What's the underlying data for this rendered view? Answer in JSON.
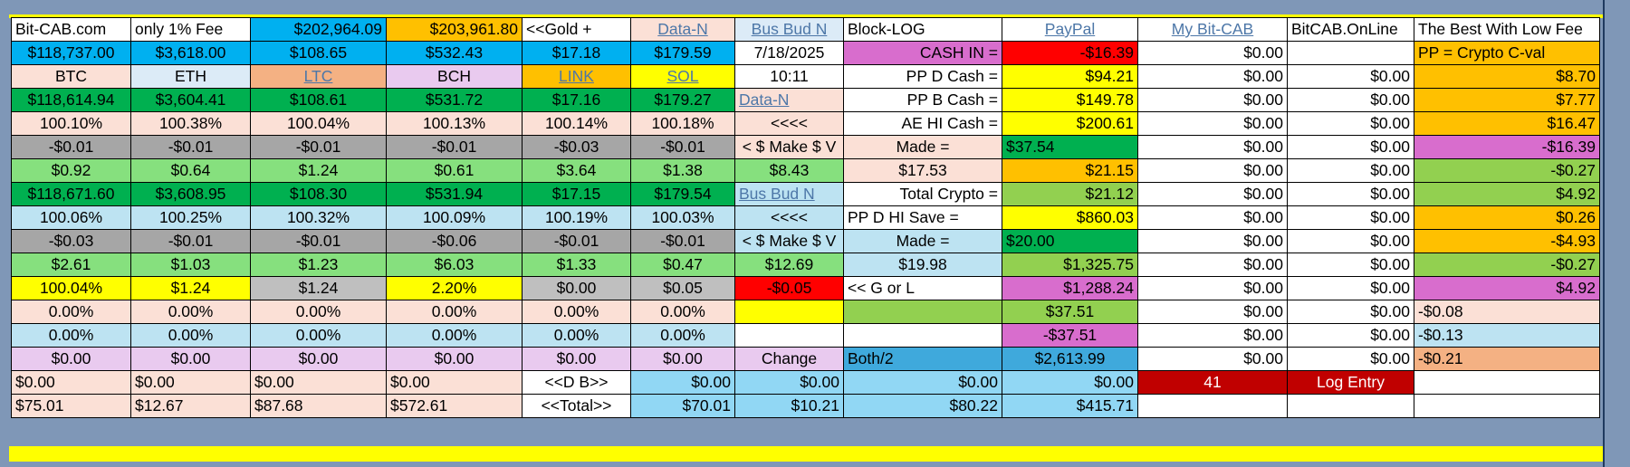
{
  "palette": {
    "W": "#ffffff",
    "B": "#00b0f0",
    "O": "#ffc000",
    "P": "#fbe0d6",
    "Q": "#dcebf7",
    "Y": "#ffff00",
    "M": "#d86dcd",
    "R": "#ff0000",
    "G": "#00b050",
    "LG": "#92d050",
    "MG": "#86e07e",
    "GR": "#a6a6a6",
    "LB": "#bde3f2",
    "LV": "#e9caef",
    "SA": "#f4b183",
    "SK": "#91d7f4",
    "DR": "#c00000",
    "DB": "#3fa9dc",
    "LGR": "#bfbfbf"
  },
  "link_color": "#4d77a8",
  "rows": [
    [
      {
        "t": "Bit-CAB.com",
        "a": "l"
      },
      {
        "t": "only 1% Fee",
        "a": "l"
      },
      {
        "t": "$202,964.09",
        "a": "r",
        "bg": "B"
      },
      {
        "t": "$203,961.80",
        "a": "r",
        "bg": "O"
      },
      {
        "t": "<<Gold +",
        "a": "l"
      },
      {
        "t": "Data-N",
        "a": "c",
        "bg": "P",
        "link": true
      },
      {
        "t": "Bus Bud N",
        "a": "c",
        "bg": "Q",
        "link": true
      },
      {
        "t": "Block-LOG",
        "a": "l"
      },
      {
        "t": "PayPal",
        "a": "c",
        "link": true
      },
      {
        "t": "My Bit-CAB",
        "a": "c",
        "link": true
      },
      {
        "t": "BitCAB.OnLine",
        "a": "l"
      },
      {
        "t": "The Best With Low Fee",
        "a": "l"
      }
    ],
    [
      {
        "t": "$118,737.00",
        "a": "c",
        "bg": "B"
      },
      {
        "t": "$3,618.00",
        "a": "c",
        "bg": "B"
      },
      {
        "t": "$108.65",
        "a": "c",
        "bg": "B"
      },
      {
        "t": "$532.43",
        "a": "c",
        "bg": "B"
      },
      {
        "t": "$17.18",
        "a": "c",
        "bg": "B"
      },
      {
        "t": "$179.59",
        "a": "c",
        "bg": "B"
      },
      {
        "t": "7/18/2025",
        "a": "c"
      },
      {
        "t": "CASH IN =",
        "a": "r",
        "bg": "M"
      },
      {
        "t": "-$16.39",
        "a": "r",
        "bg": "R"
      },
      {
        "t": "$0.00",
        "a": "r"
      },
      {
        "t": "",
        "a": "r"
      },
      {
        "t": "PP = Crypto C-val",
        "a": "l",
        "bg": "O"
      }
    ],
    [
      {
        "t": "BTC",
        "a": "c",
        "bg": "P"
      },
      {
        "t": "ETH",
        "a": "c",
        "bg": "Q"
      },
      {
        "t": "LTC",
        "a": "c",
        "bg": "SA",
        "link": true
      },
      {
        "t": "BCH",
        "a": "c",
        "bg": "LV"
      },
      {
        "t": "LINK",
        "a": "c",
        "bg": "O",
        "link": true
      },
      {
        "t": "SOL",
        "a": "c",
        "bg": "Y",
        "link": true
      },
      {
        "t": "10:11",
        "a": "c"
      },
      {
        "t": "PP  D  Cash =",
        "a": "r"
      },
      {
        "t": "$94.21",
        "a": "r",
        "bg": "Y"
      },
      {
        "t": "$0.00",
        "a": "r"
      },
      {
        "t": "$0.00",
        "a": "r"
      },
      {
        "t": "$8.70",
        "a": "r",
        "bg": "O"
      }
    ],
    [
      {
        "t": "$118,614.94",
        "a": "c",
        "bg": "G"
      },
      {
        "t": "$3,604.41",
        "a": "c",
        "bg": "G"
      },
      {
        "t": "$108.61",
        "a": "c",
        "bg": "G"
      },
      {
        "t": "$531.72",
        "a": "c",
        "bg": "G"
      },
      {
        "t": "$17.16",
        "a": "c",
        "bg": "G"
      },
      {
        "t": "$179.27",
        "a": "c",
        "bg": "G"
      },
      {
        "t": "Data-N",
        "a": "l",
        "bg": "P",
        "link": true
      },
      {
        "t": "PP  B  Cash =",
        "a": "r"
      },
      {
        "t": "$149.78",
        "a": "r",
        "bg": "Y"
      },
      {
        "t": "$0.00",
        "a": "r"
      },
      {
        "t": "$0.00",
        "a": "r"
      },
      {
        "t": "$7.77",
        "a": "r",
        "bg": "O"
      }
    ],
    [
      {
        "t": "100.10%",
        "a": "c",
        "bg": "P"
      },
      {
        "t": "100.38%",
        "a": "c",
        "bg": "P"
      },
      {
        "t": "100.04%",
        "a": "c",
        "bg": "P"
      },
      {
        "t": "100.13%",
        "a": "c",
        "bg": "P"
      },
      {
        "t": "100.14%",
        "a": "c",
        "bg": "P"
      },
      {
        "t": "100.18%",
        "a": "c",
        "bg": "P"
      },
      {
        "t": "<<<<",
        "a": "c",
        "bg": "P"
      },
      {
        "t": "AE HI Cash =",
        "a": "r"
      },
      {
        "t": "$200.61",
        "a": "r",
        "bg": "Y"
      },
      {
        "t": "$0.00",
        "a": "r"
      },
      {
        "t": "$0.00",
        "a": "r"
      },
      {
        "t": "$16.47",
        "a": "r",
        "bg": "O"
      }
    ],
    [
      {
        "t": "-$0.01",
        "a": "c",
        "bg": "GR"
      },
      {
        "t": "-$0.01",
        "a": "c",
        "bg": "GR"
      },
      {
        "t": "-$0.01",
        "a": "c",
        "bg": "GR"
      },
      {
        "t": "-$0.01",
        "a": "c",
        "bg": "GR"
      },
      {
        "t": "-$0.03",
        "a": "c",
        "bg": "GR"
      },
      {
        "t": "-$0.01",
        "a": "c",
        "bg": "GR"
      },
      {
        "t": "< $ Make $ V",
        "a": "c",
        "bg": "P"
      },
      {
        "t": "Made =",
        "a": "c",
        "bg": "P"
      },
      {
        "t": "$37.54",
        "a": "l",
        "bg": "G"
      },
      {
        "t": "$0.00",
        "a": "r"
      },
      {
        "t": "$0.00",
        "a": "r"
      },
      {
        "t": "-$16.39",
        "a": "r",
        "bg": "M"
      }
    ],
    [
      {
        "t": "$0.92",
        "a": "c",
        "bg": "MG"
      },
      {
        "t": "$0.64",
        "a": "c",
        "bg": "MG"
      },
      {
        "t": "$1.24",
        "a": "c",
        "bg": "MG"
      },
      {
        "t": "$0.61",
        "a": "c",
        "bg": "MG"
      },
      {
        "t": "$3.64",
        "a": "c",
        "bg": "MG"
      },
      {
        "t": "$1.38",
        "a": "c",
        "bg": "MG"
      },
      {
        "t": "$8.43",
        "a": "c",
        "bg": "MG"
      },
      {
        "t": "$17.53",
        "a": "c",
        "bg": "P"
      },
      {
        "t": "$21.15",
        "a": "r",
        "bg": "O"
      },
      {
        "t": "$0.00",
        "a": "r"
      },
      {
        "t": "$0.00",
        "a": "r"
      },
      {
        "t": "-$0.27",
        "a": "r",
        "bg": "LG"
      }
    ],
    [
      {
        "t": "$118,671.60",
        "a": "c",
        "bg": "G"
      },
      {
        "t": "$3,608.95",
        "a": "c",
        "bg": "G"
      },
      {
        "t": "$108.30",
        "a": "c",
        "bg": "G"
      },
      {
        "t": "$531.94",
        "a": "c",
        "bg": "G"
      },
      {
        "t": "$17.15",
        "a": "c",
        "bg": "G"
      },
      {
        "t": "$179.54",
        "a": "c",
        "bg": "G"
      },
      {
        "t": "Bus Bud N",
        "a": "l",
        "bg": "LB",
        "link": true
      },
      {
        "t": "Total Crypto =",
        "a": "r"
      },
      {
        "t": "$21.12",
        "a": "r",
        "bg": "LG"
      },
      {
        "t": "$0.00",
        "a": "r"
      },
      {
        "t": "$0.00",
        "a": "r"
      },
      {
        "t": "$4.92",
        "a": "r",
        "bg": "LG"
      }
    ],
    [
      {
        "t": "100.06%",
        "a": "c",
        "bg": "LB"
      },
      {
        "t": "100.25%",
        "a": "c",
        "bg": "LB"
      },
      {
        "t": "100.32%",
        "a": "c",
        "bg": "LB"
      },
      {
        "t": "100.09%",
        "a": "c",
        "bg": "LB"
      },
      {
        "t": "100.19%",
        "a": "c",
        "bg": "LB"
      },
      {
        "t": "100.03%",
        "a": "c",
        "bg": "LB"
      },
      {
        "t": "<<<<",
        "a": "c",
        "bg": "LB"
      },
      {
        "t": "PP D HI Save =",
        "a": "l"
      },
      {
        "t": "$860.03",
        "a": "r",
        "bg": "Y"
      },
      {
        "t": "$0.00",
        "a": "r"
      },
      {
        "t": "$0.00",
        "a": "r"
      },
      {
        "t": "$0.26",
        "a": "r",
        "bg": "O"
      }
    ],
    [
      {
        "t": "-$0.03",
        "a": "c",
        "bg": "GR"
      },
      {
        "t": "-$0.01",
        "a": "c",
        "bg": "GR"
      },
      {
        "t": "-$0.01",
        "a": "c",
        "bg": "GR"
      },
      {
        "t": "-$0.06",
        "a": "c",
        "bg": "GR"
      },
      {
        "t": "-$0.01",
        "a": "c",
        "bg": "GR"
      },
      {
        "t": "-$0.01",
        "a": "c",
        "bg": "GR"
      },
      {
        "t": "< $ Make $ V",
        "a": "c",
        "bg": "LB"
      },
      {
        "t": "Made =",
        "a": "c",
        "bg": "LB"
      },
      {
        "t": "$20.00",
        "a": "l",
        "bg": "G"
      },
      {
        "t": "$0.00",
        "a": "r"
      },
      {
        "t": "$0.00",
        "a": "r"
      },
      {
        "t": "-$4.93",
        "a": "r",
        "bg": "O"
      }
    ],
    [
      {
        "t": "$2.61",
        "a": "c",
        "bg": "MG"
      },
      {
        "t": "$1.03",
        "a": "c",
        "bg": "MG"
      },
      {
        "t": "$1.23",
        "a": "c",
        "bg": "MG"
      },
      {
        "t": "$6.03",
        "a": "c",
        "bg": "MG"
      },
      {
        "t": "$1.33",
        "a": "c",
        "bg": "MG"
      },
      {
        "t": "$0.47",
        "a": "c",
        "bg": "MG"
      },
      {
        "t": "$12.69",
        "a": "c",
        "bg": "MG"
      },
      {
        "t": "$19.98",
        "a": "c",
        "bg": "LB"
      },
      {
        "t": "$1,325.75",
        "a": "r",
        "bg": "LG"
      },
      {
        "t": "$0.00",
        "a": "r"
      },
      {
        "t": "$0.00",
        "a": "r"
      },
      {
        "t": "-$0.27",
        "a": "r",
        "bg": "LG"
      }
    ],
    [
      {
        "t": "100.04%",
        "a": "c",
        "bg": "Y"
      },
      {
        "t": "$1.24",
        "a": "c",
        "bg": "Y"
      },
      {
        "t": "$1.24",
        "a": "c",
        "bg": "LGR"
      },
      {
        "t": "2.20%",
        "a": "c",
        "bg": "Y"
      },
      {
        "t": "$0.00",
        "a": "c",
        "bg": "LGR"
      },
      {
        "t": "$0.05",
        "a": "c",
        "bg": "LGR"
      },
      {
        "t": "-$0.05",
        "a": "c",
        "bg": "R"
      },
      {
        "t": "<< G or L",
        "a": "l"
      },
      {
        "t": "$1,288.24",
        "a": "r",
        "bg": "M"
      },
      {
        "t": "$0.00",
        "a": "r"
      },
      {
        "t": "$0.00",
        "a": "r"
      },
      {
        "t": "$4.92",
        "a": "r",
        "bg": "M"
      }
    ],
    [
      {
        "t": "0.00%",
        "a": "c",
        "bg": "P"
      },
      {
        "t": "0.00%",
        "a": "c",
        "bg": "P"
      },
      {
        "t": "0.00%",
        "a": "c",
        "bg": "P"
      },
      {
        "t": "0.00%",
        "a": "c",
        "bg": "P"
      },
      {
        "t": "0.00%",
        "a": "c",
        "bg": "P"
      },
      {
        "t": "0.00%",
        "a": "c",
        "bg": "P"
      },
      {
        "t": "",
        "a": "c",
        "bg": "Y"
      },
      {
        "t": "",
        "a": "c",
        "bg": "LG"
      },
      {
        "t": "$37.51",
        "a": "c",
        "bg": "LG"
      },
      {
        "t": "$0.00",
        "a": "r"
      },
      {
        "t": "$0.00",
        "a": "r"
      },
      {
        "t": "-$0.08",
        "a": "l",
        "bg": "P"
      }
    ],
    [
      {
        "t": "0.00%",
        "a": "c",
        "bg": "LB"
      },
      {
        "t": "0.00%",
        "a": "c",
        "bg": "LB"
      },
      {
        "t": "0.00%",
        "a": "c",
        "bg": "LB"
      },
      {
        "t": "0.00%",
        "a": "c",
        "bg": "LB"
      },
      {
        "t": "0.00%",
        "a": "c",
        "bg": "LB"
      },
      {
        "t": "0.00%",
        "a": "c",
        "bg": "LB"
      },
      {
        "t": "",
        "a": "c"
      },
      {
        "t": "",
        "a": "c"
      },
      {
        "t": "-$37.51",
        "a": "c",
        "bg": "M"
      },
      {
        "t": "$0.00",
        "a": "r"
      },
      {
        "t": "$0.00",
        "a": "r"
      },
      {
        "t": "-$0.13",
        "a": "l",
        "bg": "LB"
      }
    ],
    [
      {
        "t": "$0.00",
        "a": "c",
        "bg": "LV"
      },
      {
        "t": "$0.00",
        "a": "c",
        "bg": "LV"
      },
      {
        "t": "$0.00",
        "a": "c",
        "bg": "LV"
      },
      {
        "t": "$0.00",
        "a": "c",
        "bg": "LV"
      },
      {
        "t": "$0.00",
        "a": "c",
        "bg": "LV"
      },
      {
        "t": "$0.00",
        "a": "c",
        "bg": "LV"
      },
      {
        "t": "Change",
        "a": "c",
        "bg": "LV"
      },
      {
        "t": "Both/2",
        "a": "l",
        "bg": "DB"
      },
      {
        "t": "$2,613.99",
        "a": "c",
        "bg": "DB"
      },
      {
        "t": "$0.00",
        "a": "r"
      },
      {
        "t": "$0.00",
        "a": "r"
      },
      {
        "t": "-$0.21",
        "a": "l",
        "bg": "SA"
      }
    ],
    [
      {
        "t": "$0.00",
        "a": "l",
        "bg": "P"
      },
      {
        "t": "$0.00",
        "a": "l",
        "bg": "P"
      },
      {
        "t": "$0.00",
        "a": "l",
        "bg": "P"
      },
      {
        "t": "$0.00",
        "a": "l",
        "bg": "P"
      },
      {
        "t": "<<D  B>>",
        "a": "c"
      },
      {
        "t": "$0.00",
        "a": "r",
        "bg": "SK"
      },
      {
        "t": "$0.00",
        "a": "r",
        "bg": "SK"
      },
      {
        "t": "$0.00",
        "a": "r",
        "bg": "SK"
      },
      {
        "t": "$0.00",
        "a": "r",
        "bg": "SK"
      },
      {
        "t": "41",
        "a": "c",
        "bg": "DR",
        "fg": "#ffffff"
      },
      {
        "t": "Log Entry",
        "a": "c",
        "bg": "DR",
        "fg": "#ffffff"
      },
      {
        "t": "",
        "a": "l"
      }
    ],
    [
      {
        "t": "$75.01",
        "a": "l",
        "bg": "P"
      },
      {
        "t": "$12.67",
        "a": "l",
        "bg": "P"
      },
      {
        "t": "$87.68",
        "a": "l",
        "bg": "P"
      },
      {
        "t": "$572.61",
        "a": "l",
        "bg": "P"
      },
      {
        "t": "<<Total>>",
        "a": "c"
      },
      {
        "t": "$70.01",
        "a": "r",
        "bg": "SK"
      },
      {
        "t": "$10.21",
        "a": "r",
        "bg": "SK"
      },
      {
        "t": "$80.22",
        "a": "r",
        "bg": "SK"
      },
      {
        "t": "$415.71",
        "a": "r",
        "bg": "SK"
      },
      {
        "t": "",
        "a": "r"
      },
      {
        "t": "",
        "a": "r"
      },
      {
        "t": "",
        "a": "l"
      }
    ]
  ]
}
